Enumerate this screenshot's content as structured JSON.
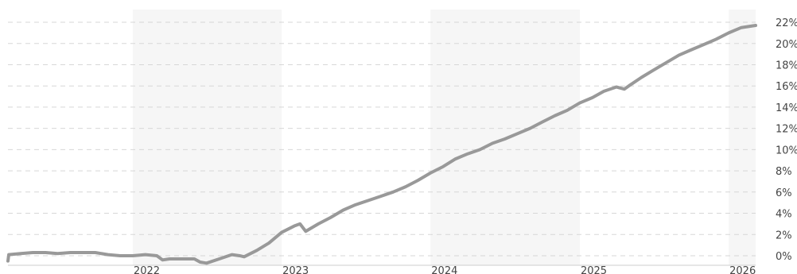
{
  "chart_data": {
    "type": "line",
    "title": "",
    "xlabel": "",
    "ylabel": "",
    "x_tick_labels": [
      "2022",
      "2023",
      "2024",
      "2025",
      "2026"
    ],
    "y_tick_labels": [
      "0%",
      "2%",
      "4%",
      "6%",
      "8%",
      "10%",
      "12%",
      "14%",
      "16%",
      "18%",
      "20%",
      "22%"
    ],
    "y_ticks": [
      0,
      2,
      4,
      6,
      8,
      10,
      12,
      14,
      16,
      18,
      20,
      22
    ],
    "ylim": [
      -0.9,
      23.2
    ],
    "xlim": [
      "2021-03-01",
      "2026-03-08"
    ],
    "grid": true,
    "legend": "none",
    "shaded_years": [
      "2022",
      "2024",
      "2026"
    ],
    "colors": {
      "line": "#999999",
      "grid": "#d7d7d7",
      "shade": "#f6f6f6",
      "axis": "#cccccc",
      "text": "#444444"
    },
    "series": [
      {
        "points": [
          [
            "2021-03-01",
            -0.5
          ],
          [
            "2021-03-03",
            0.1
          ],
          [
            "2021-04-01",
            0.2
          ],
          [
            "2021-05-01",
            0.3
          ],
          [
            "2021-06-01",
            0.3
          ],
          [
            "2021-07-01",
            0.2
          ],
          [
            "2021-08-01",
            0.3
          ],
          [
            "2021-09-01",
            0.3
          ],
          [
            "2021-10-01",
            0.3
          ],
          [
            "2021-11-01",
            0.1
          ],
          [
            "2021-12-01",
            0.0
          ],
          [
            "2022-01-01",
            0.0
          ],
          [
            "2022-02-01",
            0.1
          ],
          [
            "2022-03-01",
            0.0
          ],
          [
            "2022-03-15",
            -0.4
          ],
          [
            "2022-04-01",
            -0.3
          ],
          [
            "2022-05-01",
            -0.3
          ],
          [
            "2022-06-01",
            -0.3
          ],
          [
            "2022-06-15",
            -0.6
          ],
          [
            "2022-07-01",
            -0.7
          ],
          [
            "2022-08-01",
            -0.3
          ],
          [
            "2022-09-01",
            0.1
          ],
          [
            "2022-09-20",
            0.0
          ],
          [
            "2022-10-01",
            -0.1
          ],
          [
            "2022-11-01",
            0.5
          ],
          [
            "2022-12-01",
            1.2
          ],
          [
            "2023-01-01",
            2.2
          ],
          [
            "2023-02-01",
            2.8
          ],
          [
            "2023-02-15",
            3.0
          ],
          [
            "2023-03-01",
            2.3
          ],
          [
            "2023-04-01",
            3.0
          ],
          [
            "2023-05-01",
            3.6
          ],
          [
            "2023-06-01",
            4.3
          ],
          [
            "2023-07-01",
            4.8
          ],
          [
            "2023-08-01",
            5.2
          ],
          [
            "2023-09-01",
            5.6
          ],
          [
            "2023-10-01",
            6.0
          ],
          [
            "2023-11-01",
            6.5
          ],
          [
            "2023-12-01",
            7.1
          ],
          [
            "2024-01-01",
            7.8
          ],
          [
            "2024-02-01",
            8.4
          ],
          [
            "2024-03-01",
            9.1
          ],
          [
            "2024-04-01",
            9.6
          ],
          [
            "2024-05-01",
            10.0
          ],
          [
            "2024-06-01",
            10.6
          ],
          [
            "2024-07-01",
            11.0
          ],
          [
            "2024-08-01",
            11.5
          ],
          [
            "2024-09-01",
            12.0
          ],
          [
            "2024-10-01",
            12.6
          ],
          [
            "2024-11-01",
            13.2
          ],
          [
            "2024-12-01",
            13.7
          ],
          [
            "2025-01-01",
            14.4
          ],
          [
            "2025-02-01",
            14.9
          ],
          [
            "2025-03-01",
            15.5
          ],
          [
            "2025-04-01",
            15.9
          ],
          [
            "2025-04-20",
            15.7
          ],
          [
            "2025-05-01",
            16.0
          ],
          [
            "2025-06-01",
            16.8
          ],
          [
            "2025-07-01",
            17.5
          ],
          [
            "2025-08-01",
            18.2
          ],
          [
            "2025-09-01",
            18.9
          ],
          [
            "2025-10-01",
            19.4
          ],
          [
            "2025-11-01",
            19.9
          ],
          [
            "2025-12-01",
            20.4
          ],
          [
            "2026-01-01",
            21.0
          ],
          [
            "2026-02-01",
            21.5
          ],
          [
            "2026-03-08",
            21.7
          ]
        ]
      }
    ]
  }
}
